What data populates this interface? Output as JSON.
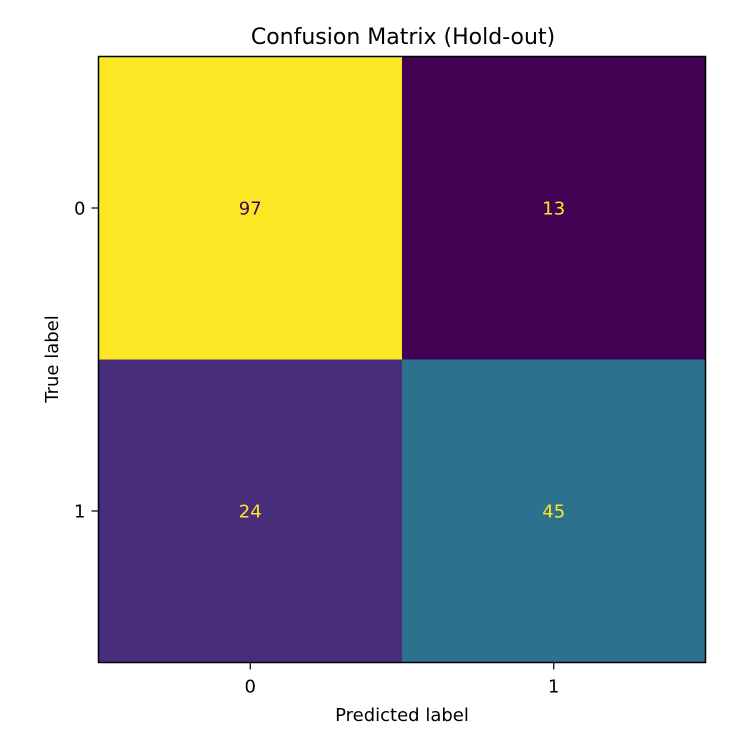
{
  "chart_data": {
    "type": "heatmap",
    "title": "Confusion Matrix (Hold-out)",
    "xlabel": "Predicted label",
    "ylabel": "True label",
    "x_categories": [
      "0",
      "1"
    ],
    "y_categories": [
      "0",
      "1"
    ],
    "values": [
      [
        97,
        13
      ],
      [
        24,
        45
      ]
    ],
    "cell_colors": [
      [
        "#fde725",
        "#440154"
      ],
      [
        "#472d7b",
        "#2c728e"
      ]
    ],
    "text_colors": [
      [
        "#440154",
        "#fde725"
      ],
      [
        "#fde725",
        "#fde725"
      ]
    ],
    "colormap": "viridis",
    "colorbar": false,
    "grid": false
  }
}
